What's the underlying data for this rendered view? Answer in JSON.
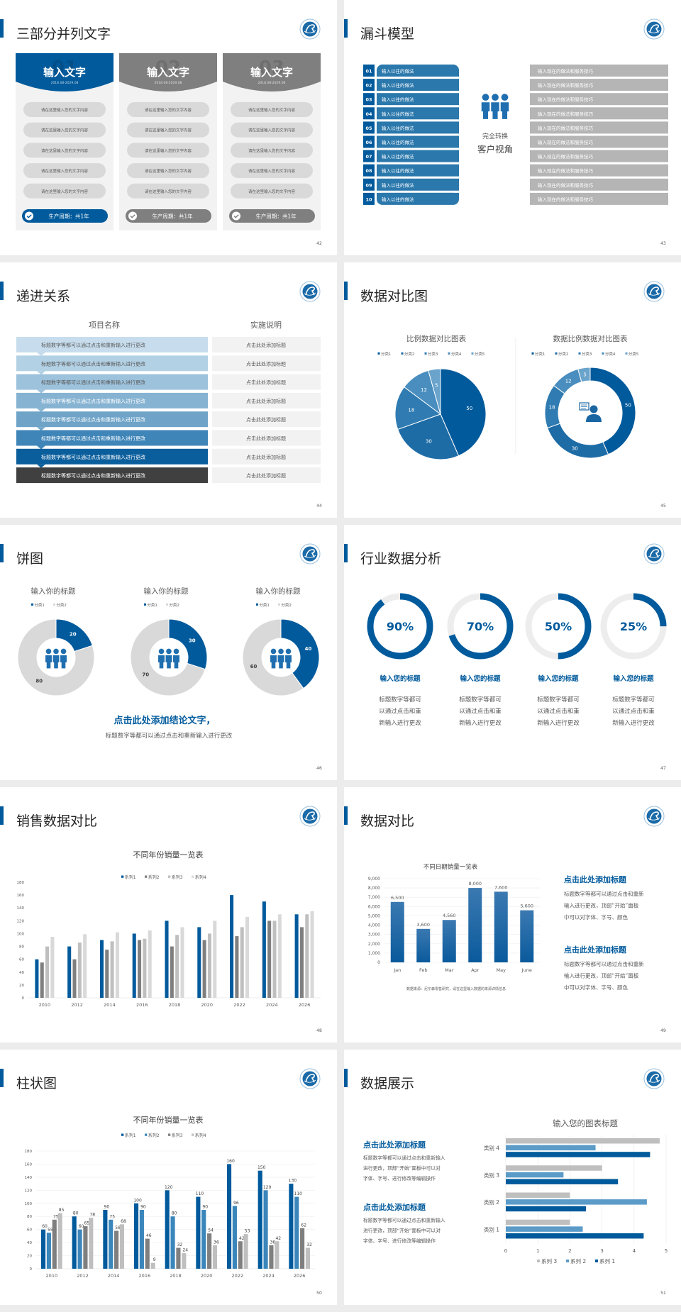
{
  "page_bg": "#ececec",
  "accent": "#005a9c",
  "slides": [
    {
      "title": "三部分并列文字",
      "page": "42",
      "cards": [
        {
          "number": "01",
          "heading": "输入文字",
          "date": "2018.08-2029.08",
          "theme": "#005a9c",
          "items": [
            "请在这里输入您的文字内容",
            "请在这里输入您的文字内容",
            "请在这里输入您的文字内容",
            "请在这里输入您的文字内容",
            "请在这里输入您的文字内容"
          ],
          "footer": "生产周期：共1年"
        },
        {
          "number": "02",
          "heading": "输入文字",
          "date": "2018.08-2029.08",
          "theme": "#7f7f7f",
          "items": [
            "请在这里输入您的文字内容",
            "请在这里输入您的文字内容",
            "请在这里输入您的文字内容",
            "请在这里输入您的文字内容",
            "请在这里输入您的文字内容"
          ],
          "footer": "生产周期：共1年"
        },
        {
          "number": "03",
          "heading": "输入文字",
          "date": "2018.08-2029.08",
          "theme": "#7f7f7f",
          "items": [
            "请在这里输入您的文字内容",
            "请在这里输入您的文字内容",
            "请在这里输入您的文字内容",
            "请在这里输入您的文字内容",
            "请在这里输入您的文字内容"
          ],
          "footer": "生产周期：共1年"
        }
      ]
    },
    {
      "title": "漏斗模型",
      "page": "43",
      "left_items": [
        {
          "num": "01",
          "text": "输入以往的做法"
        },
        {
          "num": "02",
          "text": "输入以往的做法"
        },
        {
          "num": "03",
          "text": "输入以往的做法"
        },
        {
          "num": "04",
          "text": "输入以往的做法"
        },
        {
          "num": "05",
          "text": "输入以往的做法"
        },
        {
          "num": "06",
          "text": "输入以往的做法"
        },
        {
          "num": "07",
          "text": "输入以往的做法"
        },
        {
          "num": "08",
          "text": "输入以往的做法"
        },
        {
          "num": "09",
          "text": "输入以往的做法"
        },
        {
          "num": "10",
          "text": "输入以往的做法"
        }
      ],
      "right_items": [
        "输入现在的做法和服务技巧",
        "输入现在的做法和服务技巧",
        "输入现在的做法和服务技巧",
        "输入现在的做法和服务技巧",
        "输入现在的做法和服务技巧",
        "输入现在的做法和服务技巧",
        "输入现在的做法和服务技巧",
        "输入现在的做法和服务技巧",
        "输入现在的做法和服务技巧",
        "输入现在的做法和服务技巧"
      ],
      "center": [
        "完全转换",
        "客户视角"
      ]
    },
    {
      "title": "递进关系",
      "page": "44",
      "col_headers": [
        "项目名称",
        "实施说明"
      ],
      "row_colors": [
        "#c7dded",
        "#b3d1e5",
        "#9dc2dc",
        "#86b3d2",
        "#6fa4c8",
        "#3f85b8",
        "#0b5e9c",
        "#404040"
      ],
      "rows": [
        {
          "item": "标题数字等都可以通过点击和重新输入进行更改",
          "note": "点击此处添加标题"
        },
        {
          "item": "标题数字等都可以通过点击和重新输入进行更改",
          "note": "点击此处添加标题"
        },
        {
          "item": "标题数字等都可以通过点击和重新输入进行更改",
          "note": "点击此处添加标题"
        },
        {
          "item": "标题数字等都可以通过点击和重新输入进行更改",
          "note": "点击此处添加标题"
        },
        {
          "item": "标题数字等都可以通过点击和重新输入进行更改",
          "note": "点击此处添加标题"
        },
        {
          "item": "标题数字等都可以通过点击和重新输入进行更改",
          "note": "点击此处添加标题"
        },
        {
          "item": "标题数字等都可以通过点击和重新输入进行更改",
          "note": "点击此处添加标题"
        },
        {
          "item": "标题数字等都可以通过点击和重新输入进行更改",
          "note": "点击此处添加标题"
        }
      ]
    },
    {
      "title": "数据对比图",
      "page": "45"
    },
    {
      "title": "饼图",
      "page": "46",
      "conclusion": "点击此处添加结论文字，",
      "conclusion_sub": "标题数字等都可以通过点击和重新输入进行更改"
    },
    {
      "title": "行业数据分析",
      "page": "47",
      "gauges": [
        {
          "value": 90,
          "label": "90%",
          "heading": "输入您的标题",
          "body": [
            "标题数字等都可",
            "以通过点击和重",
            "新输入进行更改"
          ]
        },
        {
          "value": 70,
          "label": "70%",
          "heading": "输入您的标题",
          "body": [
            "标题数字等都可",
            "以通过点击和重",
            "新输入进行更改"
          ]
        },
        {
          "value": 50,
          "label": "50%",
          "heading": "输入您的标题",
          "body": [
            "标题数字等都可",
            "以通过点击和重",
            "新输入进行更改"
          ]
        },
        {
          "value": 25,
          "label": "25%",
          "heading": "输入您的标题",
          "body": [
            "标题数字等都可",
            "以通过点击和重",
            "新输入进行更改"
          ]
        }
      ]
    },
    {
      "title": "销售数据对比",
      "page": "48"
    },
    {
      "title": "数据对比",
      "page": "49",
      "text_blocks": [
        {
          "heading": "点击此处添加标题",
          "body": [
            "标题数字等都可以通过点击和重新",
            "输入进行更改，顶部“开始”面板",
            "中可以对字体、字号、颜色"
          ]
        },
        {
          "heading": "点击此处添加标题",
          "body": [
            "标题数字等都可以通过点击和重新",
            "输入进行更改，顶部“开始”面板",
            "中可以对字体、字号、颜色"
          ]
        }
      ],
      "source": "数据来源：尼尔森零售研究，请在这里输入数据的来源详情信息"
    },
    {
      "title": "柱状图",
      "page": "50"
    },
    {
      "title": "数据展示",
      "page": "51",
      "text_blocks": [
        {
          "heading": "点击此处添加标题",
          "body": [
            "标题数字等都可以通过点击和重新输入",
            "进行更改，顶部“开始”面板中可以对",
            "字体、字号、进行修改等编辑操作"
          ]
        },
        {
          "heading": "点击此处添加标题",
          "body": [
            "标题数字等都可以通过点击和重新输入",
            "进行更改，顶部“开始”面板中可以对",
            "字体、字号、进行修改等编辑操作"
          ]
        }
      ]
    }
  ],
  "chart_data": [
    {
      "type": "pie",
      "title": "比例数据对比图表",
      "categories": [
        "分类1",
        "分类2",
        "分类3",
        "分类4",
        "分类5"
      ],
      "values": [
        50,
        30,
        18,
        12,
        5
      ],
      "colors": [
        "#005a9c",
        "#1e6ca6",
        "#2f7bb2",
        "#4a8ebf",
        "#6aa3cb"
      ],
      "legend": "top"
    },
    {
      "type": "pie",
      "donut": true,
      "title": "数据比例数据对比图表",
      "categories": [
        "分类1",
        "分类2",
        "分类3",
        "分类4",
        "分类5"
      ],
      "values": [
        50,
        30,
        18,
        12,
        5
      ],
      "colors": [
        "#005a9c",
        "#1e6ca6",
        "#2f7bb2",
        "#4a8ebf",
        "#6aa3cb"
      ],
      "legend": "top"
    },
    {
      "type": "pie",
      "donut": true,
      "title": "输入你的标题",
      "categories": [
        "分类1",
        "分类2"
      ],
      "values": [
        20,
        80
      ],
      "colors": [
        "#005a9c",
        "#d9d9d9"
      ],
      "legend": "top"
    },
    {
      "type": "pie",
      "donut": true,
      "title": "输入你的标题",
      "categories": [
        "分类1",
        "分类2"
      ],
      "values": [
        30,
        70
      ],
      "colors": [
        "#005a9c",
        "#d9d9d9"
      ],
      "legend": "top"
    },
    {
      "type": "pie",
      "donut": true,
      "title": "输入你的标题",
      "categories": [
        "分类1",
        "分类2"
      ],
      "values": [
        40,
        60
      ],
      "colors": [
        "#005a9c",
        "#d9d9d9"
      ],
      "legend": "top"
    },
    {
      "type": "bar",
      "title": "不同年份销量一览表",
      "categories": [
        "2010",
        "2012",
        "2014",
        "2016",
        "2018",
        "2020",
        "2022",
        "2024",
        "2026"
      ],
      "series": [
        {
          "name": "系列1",
          "color": "#005a9c",
          "values": [
            60,
            80,
            90,
            100,
            120,
            110,
            160,
            150,
            130
          ]
        },
        {
          "name": "系列2",
          "color": "#7f7f7f",
          "values": [
            55,
            60,
            75,
            90,
            80,
            90,
            96,
            120,
            110
          ]
        },
        {
          "name": "系列3",
          "color": "#bfbfbf",
          "values": [
            80,
            86,
            88,
            92,
            98,
            100,
            110,
            120,
            130
          ]
        },
        {
          "name": "系列4",
          "color": "#d9d9d9",
          "values": [
            95,
            99,
            102,
            105,
            110,
            120,
            126,
            130,
            135
          ]
        }
      ],
      "ylim": [
        0,
        180
      ],
      "yticks": [
        "0",
        "20",
        "40",
        "60",
        "80",
        "100",
        "120",
        "140",
        "160",
        "180"
      ],
      "grid": false,
      "legend": "top"
    },
    {
      "type": "bar",
      "title": "不同日期销量一览表",
      "categories": [
        "Jan",
        "Feb",
        "Mar",
        "Apr",
        "May",
        "June"
      ],
      "values": [
        6500,
        3600,
        4560,
        8000,
        7600,
        5600
      ],
      "data_labels": [
        "6,500",
        "3,600",
        "4,560",
        "8,000",
        "7,600",
        "5,600"
      ],
      "ylim": [
        0,
        9000
      ],
      "yticks": [
        "0",
        "1,000",
        "2,000",
        "3,000",
        "4,000",
        "5,000",
        "6,000",
        "7,000",
        "8,000",
        "9,000"
      ],
      "grid": true
    },
    {
      "type": "bar",
      "title": "不同年份销量一览表",
      "categories": [
        "2010",
        "2012",
        "2014",
        "2016",
        "2018",
        "2020",
        "2022",
        "2024",
        "2026"
      ],
      "series": [
        {
          "name": "系列1",
          "color": "#005a9c",
          "values": [
            60,
            80,
            90,
            100,
            120,
            110,
            160,
            150,
            130
          ]
        },
        {
          "name": "系列2",
          "color": "#3a86bb",
          "values": [
            55,
            60,
            75,
            90,
            80,
            90,
            96,
            120,
            110
          ]
        },
        {
          "name": "系列3",
          "color": "#7f7f7f",
          "values": [
            75,
            65,
            58,
            46,
            32,
            54,
            42,
            36,
            62
          ]
        },
        {
          "name": "系列4",
          "color": "#bfbfbf",
          "values": [
            85,
            78,
            68,
            9,
            24,
            36,
            53,
            42,
            32
          ]
        }
      ],
      "ylim": [
        0,
        180
      ],
      "yticks": [
        "0",
        "20",
        "40",
        "60",
        "80",
        "100",
        "120",
        "140",
        "160",
        "180"
      ],
      "grid": true,
      "data_labels": true,
      "legend": "top"
    },
    {
      "type": "bar",
      "orientation": "horizontal",
      "title": "输入您的图表标题",
      "categories": [
        "类别 1",
        "类别 2",
        "类别 3",
        "类别 4"
      ],
      "series": [
        {
          "name": "系列 1",
          "color": "#005a9c",
          "values": [
            4.3,
            2.5,
            3.5,
            4.5
          ]
        },
        {
          "name": "系列 2",
          "color": "#5b9bc8",
          "values": [
            2.4,
            4.4,
            1.8,
            2.8
          ]
        },
        {
          "name": "系列 3",
          "color": "#bfbfbf",
          "values": [
            2,
            2,
            3,
            4.8
          ]
        }
      ],
      "xlim": [
        0,
        5
      ],
      "xticks": [
        "0",
        "1",
        "2",
        "3",
        "4",
        "5"
      ],
      "grid": true,
      "legend": "bottom",
      "legend_order": [
        "系列 3",
        "系列 2",
        "系列 1"
      ]
    }
  ]
}
